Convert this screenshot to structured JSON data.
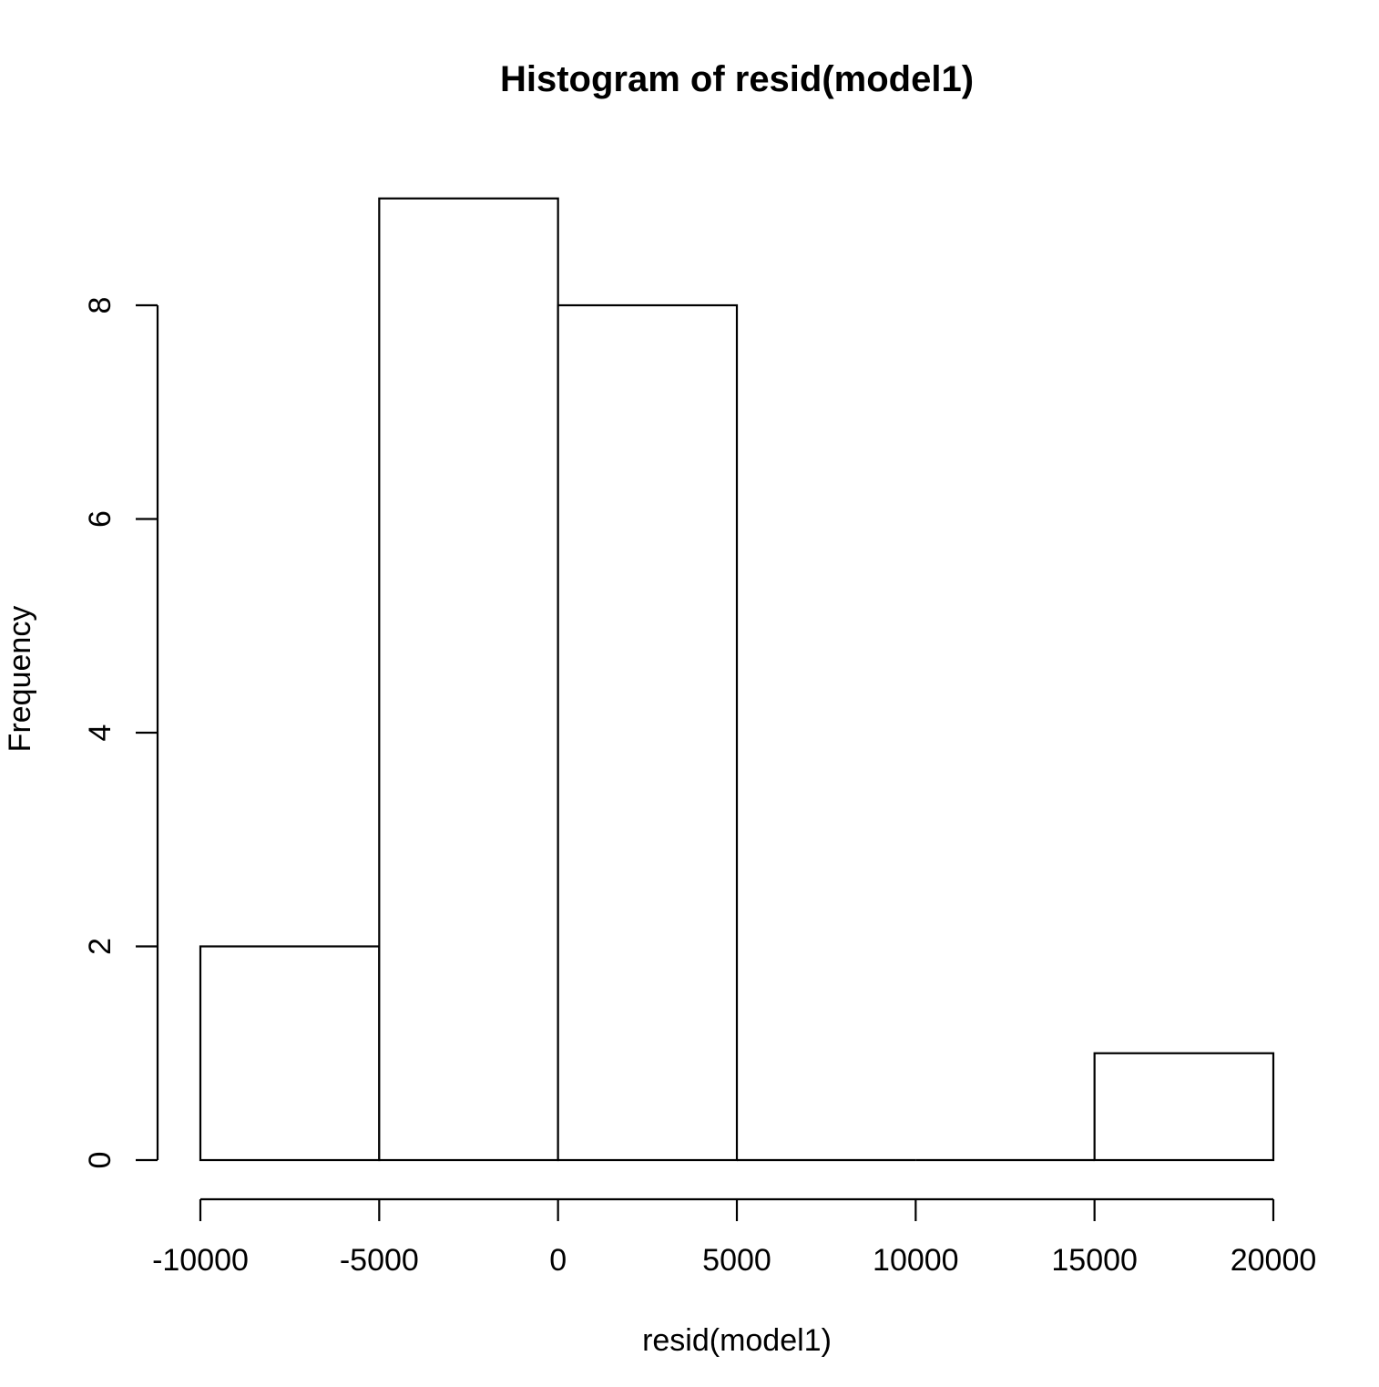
{
  "chart_data": {
    "type": "bar",
    "title": "Histogram of resid(model1)",
    "xlabel": "resid(model1)",
    "ylabel": "Frequency",
    "bins": [
      {
        "from": -10000,
        "to": -5000,
        "count": 2
      },
      {
        "from": -5000,
        "to": 0,
        "count": 9
      },
      {
        "from": 0,
        "to": 5000,
        "count": 8
      },
      {
        "from": 5000,
        "to": 10000,
        "count": 0
      },
      {
        "from": 10000,
        "to": 15000,
        "count": 0
      },
      {
        "from": 15000,
        "to": 20000,
        "count": 1
      }
    ],
    "xlim": [
      -10000,
      20000
    ],
    "ylim": [
      0,
      9
    ],
    "xticks": [
      -10000,
      -5000,
      0,
      5000,
      10000,
      15000,
      20000
    ],
    "xtick_labels": [
      "-10000",
      "-5000",
      "0",
      "5000",
      "10000",
      "15000",
      "20000"
    ],
    "yticks": [
      0,
      2,
      4,
      6,
      8
    ],
    "ytick_labels": [
      "0",
      "2",
      "4",
      "6",
      "8"
    ],
    "grid": false,
    "colors": {
      "bar_fill": "#ffffff",
      "bar_stroke": "#000000"
    }
  }
}
